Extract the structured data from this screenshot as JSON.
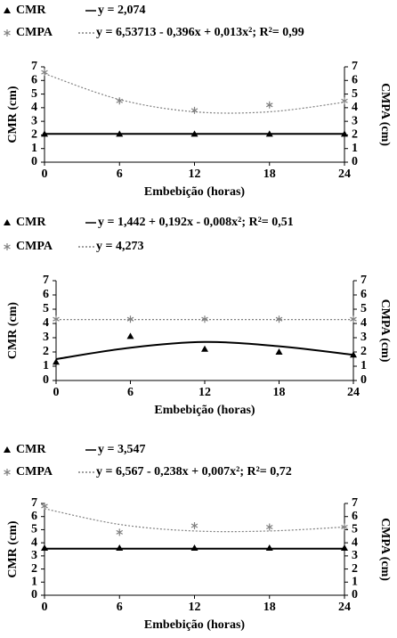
{
  "chart_data": [
    {
      "type": "scatter",
      "x": [
        0,
        6,
        12,
        18,
        24
      ],
      "xlim": [
        0,
        24
      ],
      "xticks": [
        0,
        6,
        12,
        18,
        24
      ],
      "ylim": [
        0,
        7
      ],
      "yticks": [
        0,
        1,
        2,
        3,
        4,
        5,
        6,
        7
      ],
      "y2lim": [
        0,
        7
      ],
      "y2ticks": [
        0,
        1,
        2,
        3,
        4,
        5,
        6,
        7
      ],
      "xlabel": "Embebição (horas)",
      "ylabel": "CMR (cm)",
      "y2label": "CMPA (cm)",
      "series": [
        {
          "name": "CMR",
          "equation": "y = 2,074",
          "color": "#000000",
          "marker": "triangle",
          "dashed": false,
          "values": [
            2.07,
            2.07,
            2.07,
            2.07,
            2.07
          ],
          "fit": [
            2.074,
            2.074,
            2.074,
            2.074,
            2.074
          ]
        },
        {
          "name": "CMPA",
          "equation": "y = 6,53713 - 0,396x + 0,013x²; R²= 0,99",
          "color": "#808080",
          "marker": "star",
          "dashed": true,
          "axis": "y2",
          "values": [
            6.6,
            4.5,
            3.8,
            4.2,
            4.5
          ],
          "fit": [
            6.5,
            4.6,
            3.7,
            3.7,
            4.4
          ]
        }
      ]
    },
    {
      "type": "scatter",
      "x": [
        0,
        6,
        12,
        18,
        24
      ],
      "xlim": [
        0,
        24
      ],
      "xticks": [
        0,
        6,
        12,
        18,
        24
      ],
      "ylim": [
        0,
        7
      ],
      "yticks": [
        0,
        1,
        2,
        3,
        4,
        5,
        6,
        7
      ],
      "y2lim": [
        0,
        7
      ],
      "y2ticks": [
        0,
        1,
        2,
        3,
        4,
        5,
        6,
        7
      ],
      "xlabel": "Embebição (horas)",
      "ylabel": "CMR (cm)",
      "y2label": "CMPA (cm)",
      "series": [
        {
          "name": "CMR",
          "equation": "y = 1,442 + 0,192x - 0,008x²; R²= 0,51",
          "color": "#000000",
          "marker": "triangle",
          "dashed": false,
          "values": [
            1.3,
            3.1,
            2.2,
            2.0,
            1.8
          ],
          "fit": [
            1.5,
            2.3,
            2.7,
            2.4,
            1.8
          ]
        },
        {
          "name": "CMPA",
          "equation": "y = 4,273",
          "color": "#808080",
          "marker": "star",
          "dashed": true,
          "axis": "y2",
          "values": [
            4.3,
            4.3,
            4.3,
            4.3,
            4.3
          ],
          "fit": [
            4.273,
            4.273,
            4.273,
            4.273,
            4.273
          ]
        }
      ]
    },
    {
      "type": "scatter",
      "x": [
        0,
        6,
        12,
        18,
        24
      ],
      "xlim": [
        0,
        24
      ],
      "xticks": [
        0,
        6,
        12,
        18,
        24
      ],
      "ylim": [
        0,
        7
      ],
      "yticks": [
        0,
        1,
        2,
        3,
        4,
        5,
        6,
        7
      ],
      "y2lim": [
        0,
        7
      ],
      "y2ticks": [
        0,
        1,
        2,
        3,
        4,
        5,
        6,
        7
      ],
      "xlabel": "Embebição (horas)",
      "ylabel": "CMR (cm)",
      "y2label": "CMPA (cm)",
      "series": [
        {
          "name": "CMR",
          "equation": "y = 3,547",
          "color": "#000000",
          "marker": "triangle",
          "dashed": false,
          "values": [
            3.6,
            3.6,
            3.6,
            3.6,
            3.6
          ],
          "fit": [
            3.547,
            3.547,
            3.547,
            3.547,
            3.547
          ]
        },
        {
          "name": "CMPA",
          "equation": "y = 6,567 - 0,238x + 0,007x²; R²= 0,72",
          "color": "#808080",
          "marker": "star",
          "dashed": true,
          "axis": "y2",
          "values": [
            6.8,
            4.8,
            5.3,
            5.2,
            5.2
          ],
          "fit": [
            6.6,
            5.4,
            4.9,
            4.9,
            5.2
          ]
        }
      ]
    }
  ]
}
